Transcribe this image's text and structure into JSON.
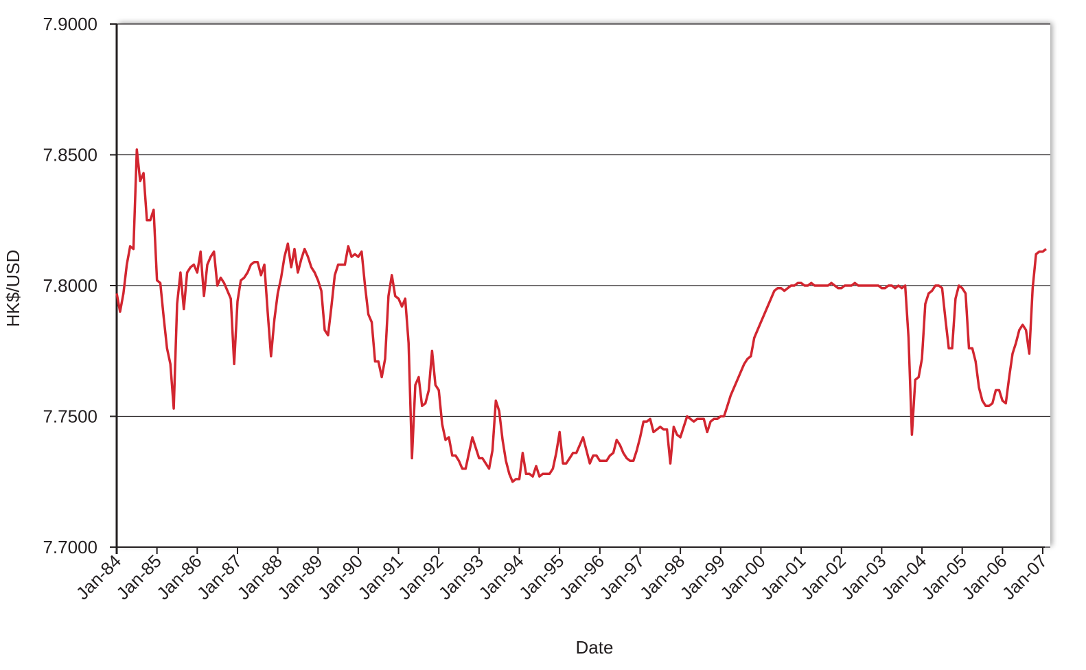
{
  "chart_data": {
    "type": "line",
    "x_label": "Date",
    "y_label": "HK$/USD",
    "color": "#d22630",
    "grid": true,
    "ylim": [
      7.7,
      7.9
    ],
    "yticks": [
      {
        "value": 7.7,
        "label": "7.7000"
      },
      {
        "value": 7.75,
        "label": "7.7500"
      },
      {
        "value": 7.8,
        "label": "7.8000"
      },
      {
        "value": 7.85,
        "label": "7.8500"
      },
      {
        "value": 7.9,
        "label": "7.9000"
      }
    ],
    "categories": [
      "Jan-84",
      null,
      null,
      null,
      null,
      null,
      null,
      null,
      null,
      null,
      null,
      null,
      "Jan-85",
      null,
      null,
      null,
      null,
      null,
      null,
      null,
      null,
      null,
      null,
      null,
      "Jan-86",
      null,
      null,
      null,
      null,
      null,
      null,
      null,
      null,
      null,
      null,
      null,
      "Jan-87",
      null,
      null,
      null,
      null,
      null,
      null,
      null,
      null,
      null,
      null,
      null,
      "Jan-88",
      null,
      null,
      null,
      null,
      null,
      null,
      null,
      null,
      null,
      null,
      null,
      "Jan-89",
      null,
      null,
      null,
      null,
      null,
      null,
      null,
      null,
      null,
      null,
      null,
      "Jan-90",
      null,
      null,
      null,
      null,
      null,
      null,
      null,
      null,
      null,
      null,
      null,
      "Jan-91",
      null,
      null,
      null,
      null,
      null,
      null,
      null,
      null,
      null,
      null,
      null,
      "Jan-92",
      null,
      null,
      null,
      null,
      null,
      null,
      null,
      null,
      null,
      null,
      null,
      "Jan-93",
      null,
      null,
      null,
      null,
      null,
      null,
      null,
      null,
      null,
      null,
      null,
      "Jan-94",
      null,
      null,
      null,
      null,
      null,
      null,
      null,
      null,
      null,
      null,
      null,
      "Jan-95",
      null,
      null,
      null,
      null,
      null,
      null,
      null,
      null,
      null,
      null,
      null,
      "Jan-96",
      null,
      null,
      null,
      null,
      null,
      null,
      null,
      null,
      null,
      null,
      null,
      "Jan-97",
      null,
      null,
      null,
      null,
      null,
      null,
      null,
      null,
      null,
      null,
      null,
      "Jan-98",
      null,
      null,
      null,
      null,
      null,
      null,
      null,
      null,
      null,
      null,
      null,
      "Jan-99",
      null,
      null,
      null,
      null,
      null,
      null,
      null,
      null,
      null,
      null,
      null,
      "Jan-00",
      null,
      null,
      null,
      null,
      null,
      null,
      null,
      null,
      null,
      null,
      null,
      "Jan-01",
      null,
      null,
      null,
      null,
      null,
      null,
      null,
      null,
      null,
      null,
      null,
      "Jan-02",
      null,
      null,
      null,
      null,
      null,
      null,
      null,
      null,
      null,
      null,
      null,
      "Jan-03",
      null,
      null,
      null,
      null,
      null,
      null,
      null,
      null,
      null,
      null,
      null,
      "Jan-04",
      null,
      null,
      null,
      null,
      null,
      null,
      null,
      null,
      null,
      null,
      null,
      "Jan-05",
      null,
      null,
      null,
      null,
      null,
      null,
      null,
      null,
      null,
      null,
      null,
      "Jan-06",
      null,
      null,
      null,
      null,
      null,
      null,
      null,
      null,
      null,
      null,
      null,
      "Jan-07",
      null
    ],
    "values": [
      7.797,
      7.79,
      7.797,
      7.808,
      7.815,
      7.814,
      7.852,
      7.84,
      7.843,
      7.825,
      7.825,
      7.829,
      7.802,
      7.801,
      7.788,
      7.776,
      7.77,
      7.753,
      7.793,
      7.805,
      7.791,
      7.805,
      7.807,
      7.808,
      7.805,
      7.813,
      7.796,
      7.808,
      7.811,
      7.813,
      7.8,
      7.803,
      7.801,
      7.798,
      7.795,
      7.77,
      7.794,
      7.802,
      7.803,
      7.805,
      7.808,
      7.809,
      7.809,
      7.804,
      7.808,
      7.79,
      7.773,
      7.787,
      7.797,
      7.803,
      7.811,
      7.816,
      7.807,
      7.814,
      7.805,
      7.81,
      7.814,
      7.811,
      7.807,
      7.805,
      7.802,
      7.798,
      7.783,
      7.781,
      7.792,
      7.804,
      7.808,
      7.808,
      7.808,
      7.815,
      7.811,
      7.812,
      7.811,
      7.813,
      7.8,
      7.789,
      7.786,
      7.771,
      7.771,
      7.765,
      7.772,
      7.796,
      7.804,
      7.796,
      7.795,
      7.792,
      7.795,
      7.778,
      7.734,
      7.762,
      7.765,
      7.754,
      7.755,
      7.76,
      7.775,
      7.762,
      7.76,
      7.747,
      7.741,
      7.742,
      7.735,
      7.735,
      7.733,
      7.73,
      7.73,
      7.736,
      7.742,
      7.738,
      7.734,
      7.734,
      7.732,
      7.73,
      7.737,
      7.756,
      7.752,
      7.741,
      7.733,
      7.728,
      7.725,
      7.726,
      7.726,
      7.736,
      7.728,
      7.728,
      7.727,
      7.731,
      7.727,
      7.728,
      7.728,
      7.728,
      7.73,
      7.736,
      7.744,
      7.732,
      7.732,
      7.734,
      7.736,
      7.736,
      7.739,
      7.742,
      7.737,
      7.732,
      7.735,
      7.735,
      7.733,
      7.733,
      7.733,
      7.735,
      7.736,
      7.741,
      7.739,
      7.736,
      7.734,
      7.733,
      7.733,
      7.737,
      7.742,
      7.748,
      7.748,
      7.749,
      7.744,
      7.745,
      7.746,
      7.745,
      7.745,
      7.732,
      7.746,
      7.743,
      7.742,
      7.746,
      7.75,
      7.749,
      7.748,
      7.749,
      7.749,
      7.749,
      7.744,
      7.748,
      7.749,
      7.749,
      7.75,
      7.75,
      7.754,
      7.758,
      7.761,
      7.764,
      7.767,
      7.77,
      7.772,
      7.773,
      7.78,
      7.783,
      7.786,
      7.789,
      7.792,
      7.795,
      7.798,
      7.799,
      7.799,
      7.798,
      7.799,
      7.8,
      7.8,
      7.801,
      7.801,
      7.8,
      7.8,
      7.801,
      7.8,
      7.8,
      7.8,
      7.8,
      7.8,
      7.801,
      7.8,
      7.799,
      7.799,
      7.8,
      7.8,
      7.8,
      7.801,
      7.8,
      7.8,
      7.8,
      7.8,
      7.8,
      7.8,
      7.8,
      7.799,
      7.799,
      7.8,
      7.8,
      7.799,
      7.8,
      7.799,
      7.8,
      7.78,
      7.743,
      7.764,
      7.765,
      7.772,
      7.793,
      7.797,
      7.798,
      7.8,
      7.8,
      7.799,
      7.787,
      7.776,
      7.776,
      7.795,
      7.8,
      7.799,
      7.797,
      7.776,
      7.776,
      7.771,
      7.761,
      7.756,
      7.754,
      7.754,
      7.755,
      7.76,
      7.76,
      7.756,
      7.755,
      7.765,
      7.774,
      7.778,
      7.783,
      7.785,
      7.783,
      7.774,
      7.799,
      7.812,
      7.813,
      7.813,
      7.814
    ]
  }
}
